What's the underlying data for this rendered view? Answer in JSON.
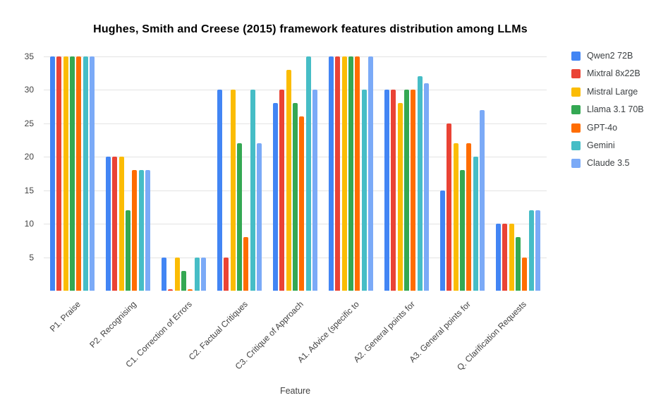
{
  "chart_data": {
    "type": "bar",
    "title": "Hughes, Smith and Creese (2015) framework features distribution among LLMs",
    "xlabel": "Feature",
    "ylabel": "",
    "ylim": [
      0,
      35
    ],
    "yticks": [
      5,
      10,
      15,
      20,
      25,
      30,
      35
    ],
    "grid": true,
    "legend_position": "right",
    "categories": [
      "P1. Praise",
      "P2. Recognising",
      "C1. Correction of Errors",
      "C2. Factual Critiques",
      "C3. Critique of Approach",
      "A1. Advice (specific to",
      "A2. General points for",
      "A3. General points for",
      "Q. Clarification Requests"
    ],
    "series": [
      {
        "name": "Qwen2 72B",
        "color": "#4285F4",
        "values": [
          35,
          20,
          5,
          30,
          28,
          35,
          30,
          15,
          10
        ]
      },
      {
        "name": "Mixtral 8x22B",
        "color": "#EA4335",
        "values": [
          35,
          20,
          0.2,
          5,
          30,
          35,
          30,
          25,
          10
        ]
      },
      {
        "name": "Mistral Large",
        "color": "#FBBC04",
        "values": [
          35,
          20,
          5,
          30,
          33,
          35,
          28,
          22,
          10
        ]
      },
      {
        "name": "Llama 3.1 70B",
        "color": "#34A853",
        "values": [
          35,
          12,
          3,
          22,
          28,
          35,
          30,
          18,
          8
        ]
      },
      {
        "name": "GPT-4o",
        "color": "#FF6D01",
        "values": [
          35,
          18,
          0.2,
          8,
          26,
          35,
          30,
          22,
          5
        ]
      },
      {
        "name": "Gemini",
        "color": "#46BDC6",
        "values": [
          35,
          18,
          5,
          30,
          35,
          30,
          32,
          20,
          12
        ]
      },
      {
        "name": "Claude 3.5",
        "color": "#7BAAF7",
        "values": [
          35,
          18,
          5,
          22,
          30,
          35,
          31,
          27,
          12
        ]
      }
    ]
  }
}
